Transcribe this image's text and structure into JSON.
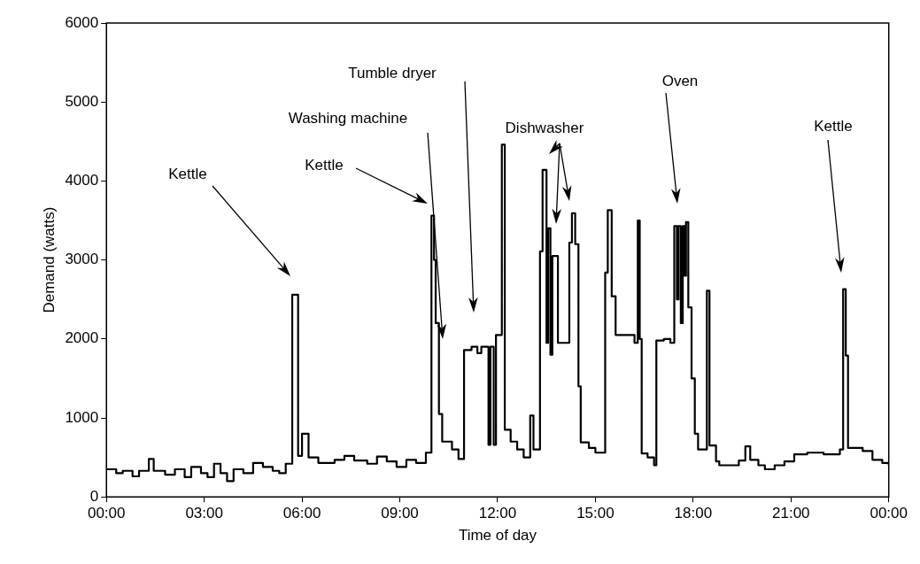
{
  "chart_data": {
    "type": "step",
    "xlabel": "Time of day",
    "ylabel": "Demand (watts)",
    "xlim": [
      0,
      24
    ],
    "xticks": [
      {
        "value": 0,
        "label": "00:00"
      },
      {
        "value": 3,
        "label": "03:00"
      },
      {
        "value": 6,
        "label": "06:00"
      },
      {
        "value": 9,
        "label": "09:00"
      },
      {
        "value": 12,
        "label": "12:00"
      },
      {
        "value": 15,
        "label": "15:00"
      },
      {
        "value": 18,
        "label": "18:00"
      },
      {
        "value": 21,
        "label": "21:00"
      },
      {
        "value": 24,
        "label": "00:00"
      }
    ],
    "ylim": [
      0,
      6000
    ],
    "yticks": [
      0,
      1000,
      2000,
      3000,
      4000,
      5000,
      6000
    ],
    "grid": false,
    "legend": false,
    "marker": "none",
    "line_style": "solid",
    "series": [
      {
        "color": "#000000",
        "x": [
          0,
          0.3,
          0.5,
          0.8,
          1.0,
          1.3,
          1.45,
          1.8,
          2.1,
          2.4,
          2.6,
          2.9,
          3.1,
          3.3,
          3.5,
          3.7,
          3.9,
          4.2,
          4.5,
          4.8,
          5.1,
          5.3,
          5.5,
          5.7,
          5.88,
          6.0,
          6.2,
          6.5,
          7.0,
          7.3,
          7.6,
          8.0,
          8.3,
          8.6,
          8.9,
          9.2,
          9.5,
          9.8,
          9.97,
          10.05,
          10.1,
          10.2,
          10.3,
          10.6,
          10.8,
          10.97,
          11.2,
          11.38,
          11.5,
          11.72,
          11.78,
          11.88,
          11.95,
          12.13,
          12.22,
          12.4,
          12.6,
          12.8,
          13.0,
          13.1,
          13.3,
          13.38,
          13.5,
          13.55,
          13.62,
          13.68,
          13.85,
          14.2,
          14.28,
          14.38,
          14.48,
          14.55,
          14.8,
          15.0,
          15.3,
          15.38,
          15.5,
          15.62,
          16.2,
          16.3,
          16.36,
          16.42,
          16.6,
          16.8,
          16.87,
          17.1,
          17.3,
          17.42,
          17.5,
          17.55,
          17.62,
          17.68,
          17.74,
          17.78,
          17.85,
          17.95,
          18.05,
          18.15,
          18.42,
          18.5,
          18.7,
          18.8,
          19.4,
          19.6,
          19.75,
          20.0,
          20.2,
          20.5,
          20.8,
          21.1,
          21.5,
          22.0,
          22.5,
          22.6,
          22.68,
          22.75,
          23.2,
          23.5,
          23.8,
          24
        ],
        "values": [
          350,
          300,
          330,
          260,
          330,
          480,
          330,
          280,
          350,
          250,
          380,
          300,
          250,
          420,
          300,
          200,
          350,
          300,
          430,
          380,
          330,
          300,
          420,
          2560,
          520,
          800,
          500,
          430,
          470,
          520,
          460,
          420,
          510,
          450,
          380,
          470,
          430,
          560,
          3560,
          3000,
          2200,
          1050,
          700,
          600,
          480,
          1860,
          1900,
          1820,
          1900,
          660,
          1900,
          660,
          2050,
          4460,
          850,
          700,
          600,
          500,
          1030,
          600,
          3110,
          4140,
          1950,
          3400,
          1800,
          3050,
          1950,
          3220,
          3590,
          3200,
          1400,
          690,
          620,
          560,
          2840,
          3630,
          2540,
          2050,
          1950,
          3500,
          2000,
          550,
          500,
          400,
          1980,
          2000,
          1950,
          3430,
          2500,
          3430,
          2200,
          3430,
          2800,
          3480,
          2400,
          1500,
          800,
          600,
          2610,
          650,
          450,
          400,
          460,
          640,
          470,
          400,
          350,
          400,
          450,
          540,
          560,
          540,
          600,
          2630,
          1790,
          620,
          580,
          470,
          430,
          400
        ]
      }
    ],
    "annotations": [
      "Kettle",
      "Kettle",
      "Washing machine",
      "Tumble dryer",
      "Dishwasher",
      "Oven",
      "Kettle"
    ]
  }
}
